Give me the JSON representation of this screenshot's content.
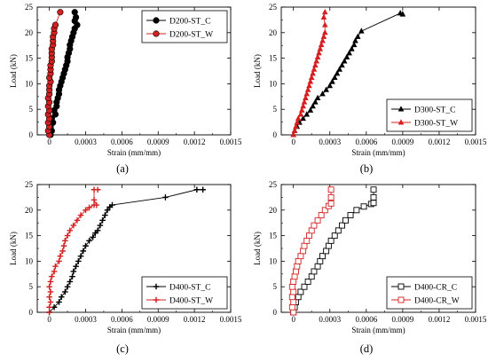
{
  "colors": {
    "black": "#000000",
    "red": "#d42020"
  },
  "chart_data": [
    {
      "type": "line",
      "panel_label": "(a)",
      "xlabel": "Strain (mm/mm)",
      "ylabel": "Load (kN)",
      "xlim": [
        -0.0001,
        0.0015
      ],
      "ylim": [
        0,
        25
      ],
      "xticks": [
        "0",
        "0.0003",
        "0.0006",
        "0.0009",
        "0.0012",
        "0.0015"
      ],
      "yticks": [
        "0",
        "5",
        "10",
        "15",
        "20",
        "25"
      ],
      "legend_position": "top-right",
      "series": [
        {
          "name": "D200-ST_C",
          "color": "#000000",
          "marker": "circle-filled",
          "points": [
            [
              1e-05,
              0
            ],
            [
              2e-05,
              0.8
            ],
            [
              1e-05,
              1.6
            ],
            [
              3e-05,
              2.4
            ],
            [
              2e-05,
              3.2
            ],
            [
              5e-05,
              4
            ],
            [
              4e-05,
              4.8
            ],
            [
              6e-05,
              5.6
            ],
            [
              6e-05,
              6.4
            ],
            [
              7e-05,
              7.2
            ],
            [
              8e-05,
              8
            ],
            [
              8e-05,
              8.8
            ],
            [
              9e-05,
              9.6
            ],
            [
              0.0001,
              10.4
            ],
            [
              0.00011,
              11.2
            ],
            [
              0.00012,
              12
            ],
            [
              0.00013,
              12.8
            ],
            [
              0.00014,
              13.6
            ],
            [
              0.00015,
              14.4
            ],
            [
              0.00015,
              15.2
            ],
            [
              0.00016,
              16
            ],
            [
              0.00017,
              16.8
            ],
            [
              0.00017,
              17.6
            ],
            [
              0.00018,
              18.4
            ],
            [
              0.00019,
              19.2
            ],
            [
              0.0002,
              20
            ],
            [
              0.00021,
              20.8
            ],
            [
              0.00023,
              21.5
            ],
            [
              0.00021,
              22.3
            ],
            [
              0.00022,
              23
            ],
            [
              0.00021,
              24
            ]
          ]
        },
        {
          "name": "D200-ST_W",
          "color": "#d42020",
          "marker": "circle-filled",
          "points": [
            [
              0,
              0
            ],
            [
              -1e-05,
              0.8
            ],
            [
              0,
              1.6
            ],
            [
              -1e-05,
              2.4
            ],
            [
              0,
              3.2
            ],
            [
              -1e-05,
              4
            ],
            [
              0,
              4.8
            ],
            [
              -1e-05,
              5.6
            ],
            [
              0,
              6.4
            ],
            [
              -1e-05,
              7.2
            ],
            [
              0,
              8
            ],
            [
              0,
              8.8
            ],
            [
              0,
              9.6
            ],
            [
              1e-05,
              10.4
            ],
            [
              0,
              11.2
            ],
            [
              1e-05,
              12
            ],
            [
              1e-05,
              12.8
            ],
            [
              1e-05,
              13.6
            ],
            [
              2e-05,
              14.4
            ],
            [
              2e-05,
              15.2
            ],
            [
              2e-05,
              16
            ],
            [
              2e-05,
              16.8
            ],
            [
              3e-05,
              17.6
            ],
            [
              3e-05,
              18.4
            ],
            [
              3e-05,
              19.2
            ],
            [
              4e-05,
              20
            ],
            [
              4e-05,
              20.8
            ],
            [
              5e-05,
              21.5
            ],
            [
              9e-05,
              24
            ]
          ]
        }
      ]
    },
    {
      "type": "line",
      "panel_label": "(b)",
      "xlabel": "Strain (mm/mm)",
      "ylabel": "Load (kN)",
      "xlim": [
        -0.0001,
        0.0015
      ],
      "ylim": [
        0,
        25
      ],
      "xticks": [
        "0",
        "0.0003",
        "0.0006",
        "0.0009",
        "0.0012",
        "0.0015"
      ],
      "yticks": [
        "0",
        "5",
        "10",
        "15",
        "20",
        "25"
      ],
      "legend_position": "bottom-right",
      "series": [
        {
          "name": "D300-ST_C",
          "color": "#000000",
          "marker": "triangle-filled",
          "points": [
            [
              0,
              0
            ],
            [
              1e-05,
              0.8
            ],
            [
              3e-05,
              1.6
            ],
            [
              5e-05,
              2.4
            ],
            [
              8e-05,
              3.2
            ],
            [
              0.00011,
              4
            ],
            [
              0.00014,
              4.8
            ],
            [
              0.00016,
              5.6
            ],
            [
              0.00018,
              6.4
            ],
            [
              0.0002,
              7.2
            ],
            [
              0.00024,
              8
            ],
            [
              0.00027,
              8.8
            ],
            [
              0.0003,
              9.6
            ],
            [
              0.00032,
              10.4
            ],
            [
              0.00034,
              11.2
            ],
            [
              0.00036,
              12
            ],
            [
              0.00038,
              12.8
            ],
            [
              0.0004,
              13.6
            ],
            [
              0.00042,
              14.4
            ],
            [
              0.00044,
              15.2
            ],
            [
              0.00046,
              16
            ],
            [
              0.00048,
              16.8
            ],
            [
              0.0005,
              17.6
            ],
            [
              0.00051,
              18.4
            ],
            [
              0.00053,
              19.2
            ],
            [
              0.00056,
              20.3
            ],
            [
              0.00088,
              23.8
            ],
            [
              0.0009,
              23.6
            ]
          ]
        },
        {
          "name": "D300-ST_W",
          "color": "#d42020",
          "marker": "triangle-filled",
          "points": [
            [
              0,
              0
            ],
            [
              1e-05,
              0.8
            ],
            [
              2e-05,
              1.6
            ],
            [
              3e-05,
              2.4
            ],
            [
              4e-05,
              3.2
            ],
            [
              6e-05,
              4
            ],
            [
              7e-05,
              4.8
            ],
            [
              8e-05,
              5.6
            ],
            [
              9e-05,
              6.4
            ],
            [
              0.0001,
              7.2
            ],
            [
              0.00011,
              8
            ],
            [
              0.00012,
              8.8
            ],
            [
              0.00013,
              9.6
            ],
            [
              0.00014,
              10.4
            ],
            [
              0.00015,
              11.2
            ],
            [
              0.00016,
              12
            ],
            [
              0.00017,
              12.8
            ],
            [
              0.00018,
              13.6
            ],
            [
              0.00019,
              14.4
            ],
            [
              0.0002,
              15.2
            ],
            [
              0.00021,
              16
            ],
            [
              0.00022,
              16.8
            ],
            [
              0.00023,
              17.6
            ],
            [
              0.00024,
              18.4
            ],
            [
              0.00025,
              19.2
            ],
            [
              0.00026,
              20
            ],
            [
              0.00026,
              21.5
            ],
            [
              0.00025,
              23
            ],
            [
              0.00026,
              24
            ]
          ]
        }
      ]
    },
    {
      "type": "line",
      "panel_label": "(c)",
      "xlabel": "Strain (mm/mm)",
      "ylabel": "Load (kN)",
      "xlim": [
        -0.0001,
        0.0015
      ],
      "ylim": [
        0,
        25
      ],
      "xticks": [
        "0",
        "0.0003",
        "0.0006",
        "0.0009",
        "0.0012",
        "0.0015"
      ],
      "yticks": [
        "0",
        "5",
        "10",
        "15",
        "20",
        "25"
      ],
      "legend_position": "bottom-right",
      "series": [
        {
          "name": "D400-ST_C",
          "color": "#000000",
          "marker": "plus",
          "points": [
            [
              0,
              0
            ],
            [
              4e-05,
              1
            ],
            [
              8e-05,
              2
            ],
            [
              0.0001,
              3
            ],
            [
              0.00013,
              4
            ],
            [
              0.00015,
              5
            ],
            [
              0.00017,
              6
            ],
            [
              0.00019,
              7
            ],
            [
              0.0002,
              8
            ],
            [
              0.00022,
              9
            ],
            [
              0.00024,
              10
            ],
            [
              0.00026,
              11
            ],
            [
              0.00028,
              12
            ],
            [
              0.0003,
              13
            ],
            [
              0.00033,
              14
            ],
            [
              0.00036,
              14.7
            ],
            [
              0.00038,
              15.5
            ],
            [
              0.0004,
              16
            ],
            [
              0.00042,
              17
            ],
            [
              0.00044,
              18
            ],
            [
              0.00046,
              19
            ],
            [
              0.00048,
              20
            ],
            [
              0.0005,
              20.6
            ],
            [
              0.00052,
              21
            ],
            [
              0.00096,
              22.5
            ],
            [
              0.00122,
              24
            ],
            [
              0.00127,
              24
            ]
          ]
        },
        {
          "name": "D400-ST_W",
          "color": "#d42020",
          "marker": "plus",
          "points": [
            [
              0,
              0
            ],
            [
              0,
              1
            ],
            [
              1e-05,
              2
            ],
            [
              0,
              3
            ],
            [
              1e-05,
              4
            ],
            [
              0,
              5
            ],
            [
              1e-05,
              6
            ],
            [
              2e-05,
              7
            ],
            [
              4e-05,
              8
            ],
            [
              5e-05,
              9
            ],
            [
              8e-05,
              10
            ],
            [
              9e-05,
              11
            ],
            [
              0.00011,
              12
            ],
            [
              0.00012,
              13
            ],
            [
              0.00013,
              14
            ],
            [
              0.00015,
              15
            ],
            [
              0.00017,
              16
            ],
            [
              0.0002,
              17
            ],
            [
              0.00023,
              18
            ],
            [
              0.00026,
              19
            ],
            [
              0.0003,
              20
            ],
            [
              0.00033,
              20.5
            ],
            [
              0.00037,
              21
            ],
            [
              0.00039,
              21
            ],
            [
              0.00037,
              22
            ],
            [
              0.00037,
              24
            ],
            [
              0.0004,
              24
            ]
          ]
        }
      ]
    },
    {
      "type": "line",
      "panel_label": "(d)",
      "xlabel": "Strain (mm/mm)",
      "ylabel": "Load (kN)",
      "xlim": [
        -0.0001,
        0.0015
      ],
      "ylim": [
        0,
        25
      ],
      "xticks": [
        "0",
        "0.0003",
        "0.0006",
        "0.0009",
        "0.0012",
        "0.0015"
      ],
      "yticks": [
        "0",
        "5",
        "10",
        "15",
        "20",
        "25"
      ],
      "legend_position": "bottom-right",
      "series": [
        {
          "name": "D400-CR_C",
          "color": "#000000",
          "marker": "square-open",
          "points": [
            [
              0,
              0
            ],
            [
              1e-05,
              1
            ],
            [
              2e-05,
              2
            ],
            [
              4e-05,
              3
            ],
            [
              6e-05,
              4
            ],
            [
              9e-05,
              5
            ],
            [
              0.00012,
              6
            ],
            [
              0.00015,
              7
            ],
            [
              0.00017,
              8
            ],
            [
              0.0002,
              9
            ],
            [
              0.00022,
              10
            ],
            [
              0.00024,
              11
            ],
            [
              0.00027,
              12
            ],
            [
              0.00029,
              13
            ],
            [
              0.00031,
              14
            ],
            [
              0.00034,
              15
            ],
            [
              0.00037,
              16
            ],
            [
              0.0004,
              17
            ],
            [
              0.00043,
              18
            ],
            [
              0.00047,
              19
            ],
            [
              0.00052,
              20
            ],
            [
              0.00058,
              20.7
            ],
            [
              0.00064,
              21.2
            ],
            [
              0.00066,
              21.4
            ],
            [
              0.00066,
              22.5
            ],
            [
              0.00066,
              24
            ]
          ]
        },
        {
          "name": "D400-CR_W",
          "color": "#d42020",
          "marker": "square-open",
          "points": [
            [
              0,
              0
            ],
            [
              -1e-05,
              1
            ],
            [
              0,
              2
            ],
            [
              -1e-05,
              3
            ],
            [
              0,
              4
            ],
            [
              -1e-05,
              5
            ],
            [
              0,
              6
            ],
            [
              1e-05,
              7
            ],
            [
              2e-05,
              8
            ],
            [
              3e-05,
              9
            ],
            [
              4e-05,
              10
            ],
            [
              6e-05,
              11
            ],
            [
              8e-05,
              12
            ],
            [
              9e-05,
              13
            ],
            [
              0.00011,
              14
            ],
            [
              0.00013,
              15
            ],
            [
              0.00015,
              16
            ],
            [
              0.00017,
              17
            ],
            [
              0.0002,
              18
            ],
            [
              0.00023,
              19
            ],
            [
              0.00026,
              20
            ],
            [
              0.00029,
              20.8
            ],
            [
              0.00031,
              21.3
            ],
            [
              0.00031,
              22.5
            ],
            [
              0.00031,
              24
            ]
          ]
        }
      ]
    }
  ]
}
